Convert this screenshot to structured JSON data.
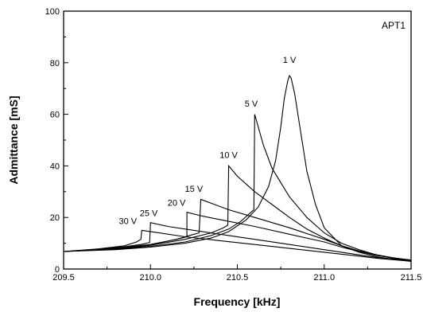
{
  "chart_data": {
    "type": "line",
    "title": "",
    "annotation": "APT1",
    "xlabel": "Frequency [kHz]",
    "ylabel": "Admittance [mS]",
    "xlim": [
      209.5,
      211.5
    ],
    "ylim": [
      0,
      100
    ],
    "xticks": [
      209.5,
      210.0,
      210.5,
      211.0,
      211.5
    ],
    "xtick_labels": [
      "209.5",
      "210.0",
      "210.5",
      "211.0",
      "211.5"
    ],
    "yticks": [
      0,
      20,
      40,
      60,
      80,
      100
    ],
    "ytick_labels": [
      "0",
      "20",
      "40",
      "60",
      "80",
      "100"
    ],
    "grid": false,
    "legend": "none",
    "series": [
      {
        "name": "1 V",
        "label_at": [
          210.8,
          80
        ],
        "points": [
          [
            209.5,
            6.8
          ],
          [
            209.8,
            7.5
          ],
          [
            210.0,
            8.5
          ],
          [
            210.2,
            10.0
          ],
          [
            210.35,
            12.0
          ],
          [
            210.45,
            14.5
          ],
          [
            210.55,
            19.0
          ],
          [
            210.62,
            24.0
          ],
          [
            210.68,
            32.0
          ],
          [
            210.72,
            42.0
          ],
          [
            210.75,
            55.0
          ],
          [
            210.77,
            66.0
          ],
          [
            210.79,
            73.0
          ],
          [
            210.8,
            75.0
          ],
          [
            210.81,
            74.0
          ],
          [
            210.83,
            68.0
          ],
          [
            210.86,
            55.0
          ],
          [
            210.9,
            38.0
          ],
          [
            210.95,
            25.0
          ],
          [
            211.0,
            16.0
          ],
          [
            211.1,
            9.0
          ],
          [
            211.2,
            6.5
          ],
          [
            211.3,
            4.8
          ],
          [
            211.4,
            3.7
          ],
          [
            211.5,
            3.0
          ]
        ]
      },
      {
        "name": "5 V",
        "label_at": [
          210.58,
          63
        ],
        "points": [
          [
            209.5,
            6.8
          ],
          [
            209.8,
            7.7
          ],
          [
            210.0,
            8.8
          ],
          [
            210.2,
            10.5
          ],
          [
            210.35,
            13.0
          ],
          [
            210.45,
            15.5
          ],
          [
            210.52,
            18.5
          ],
          [
            210.57,
            21.5
          ],
          [
            210.595,
            23.0
          ],
          [
            210.6,
            60.0
          ],
          [
            210.65,
            48.0
          ],
          [
            210.7,
            39.0
          ],
          [
            210.8,
            28.0
          ],
          [
            210.9,
            20.0
          ],
          [
            211.0,
            14.0
          ],
          [
            211.1,
            10.0
          ],
          [
            211.2,
            7.5
          ],
          [
            211.3,
            5.5
          ],
          [
            211.4,
            4.2
          ],
          [
            211.5,
            3.3
          ]
        ]
      },
      {
        "name": "10 V",
        "label_at": [
          210.45,
          43
        ],
        "points": [
          [
            209.5,
            6.8
          ],
          [
            209.8,
            7.8
          ],
          [
            210.0,
            9.2
          ],
          [
            210.2,
            11.5
          ],
          [
            210.35,
            14.0
          ],
          [
            210.42,
            16.0
          ],
          [
            210.445,
            17.0
          ],
          [
            210.45,
            40.0
          ],
          [
            210.5,
            36.0
          ],
          [
            210.6,
            30.0
          ],
          [
            210.7,
            25.0
          ],
          [
            210.8,
            20.0
          ],
          [
            210.9,
            15.5
          ],
          [
            211.0,
            12.0
          ],
          [
            211.1,
            9.0
          ],
          [
            211.2,
            7.0
          ],
          [
            211.3,
            5.5
          ],
          [
            211.4,
            4.3
          ],
          [
            211.5,
            3.5
          ]
        ]
      },
      {
        "name": "15 V",
        "label_at": [
          210.25,
          30
        ],
        "points": [
          [
            209.5,
            6.8
          ],
          [
            209.8,
            8.0
          ],
          [
            210.0,
            9.5
          ],
          [
            210.15,
            11.5
          ],
          [
            210.25,
            13.5
          ],
          [
            210.28,
            14.0
          ],
          [
            210.29,
            27.0
          ],
          [
            210.35,
            25.5
          ],
          [
            210.45,
            23.0
          ],
          [
            210.6,
            20.0
          ],
          [
            210.8,
            16.0
          ],
          [
            211.0,
            11.5
          ],
          [
            211.1,
            9.0
          ],
          [
            211.2,
            7.0
          ],
          [
            211.3,
            5.5
          ],
          [
            211.4,
            4.3
          ],
          [
            211.5,
            3.5
          ]
        ]
      },
      {
        "name": "20 V",
        "label_at": [
          210.15,
          24.5
        ],
        "points": [
          [
            209.5,
            6.8
          ],
          [
            209.8,
            8.0
          ],
          [
            210.0,
            9.5
          ],
          [
            210.1,
            10.8
          ],
          [
            210.18,
            12.0
          ],
          [
            210.21,
            12.5
          ],
          [
            210.21,
            22.0
          ],
          [
            210.3,
            20.5
          ],
          [
            210.45,
            18.5
          ],
          [
            210.6,
            16.5
          ],
          [
            210.8,
            13.5
          ],
          [
            211.0,
            10.5
          ],
          [
            211.1,
            8.5
          ],
          [
            211.2,
            6.8
          ],
          [
            211.3,
            5.3
          ],
          [
            211.4,
            4.2
          ],
          [
            211.5,
            3.4
          ]
        ]
      },
      {
        "name": "25 V",
        "label_at": [
          209.99,
          20.5
        ],
        "points": [
          [
            209.5,
            6.8
          ],
          [
            209.7,
            7.6
          ],
          [
            209.85,
            8.6
          ],
          [
            209.95,
            9.6
          ],
          [
            209.995,
            10.3
          ],
          [
            210.0,
            18.0
          ],
          [
            210.1,
            16.5
          ],
          [
            210.25,
            15.0
          ],
          [
            210.4,
            13.5
          ],
          [
            210.6,
            11.5
          ],
          [
            210.8,
            9.5
          ],
          [
            211.0,
            7.5
          ],
          [
            211.2,
            5.5
          ],
          [
            211.3,
            4.5
          ],
          [
            211.5,
            3.2
          ]
        ]
      },
      {
        "name": "30 V",
        "label_at": [
          209.87,
          17.5
        ],
        "points": [
          [
            209.5,
            6.8
          ],
          [
            209.7,
            7.8
          ],
          [
            209.85,
            9.0
          ],
          [
            209.92,
            10.5
          ],
          [
            209.945,
            11.5
          ],
          [
            209.95,
            15.0
          ],
          [
            210.05,
            14.0
          ],
          [
            210.2,
            12.5
          ],
          [
            210.4,
            11.0
          ],
          [
            210.6,
            9.5
          ],
          [
            210.8,
            8.0
          ],
          [
            211.0,
            6.5
          ],
          [
            211.2,
            5.0
          ],
          [
            211.3,
            4.2
          ],
          [
            211.5,
            3.0
          ]
        ]
      }
    ]
  }
}
